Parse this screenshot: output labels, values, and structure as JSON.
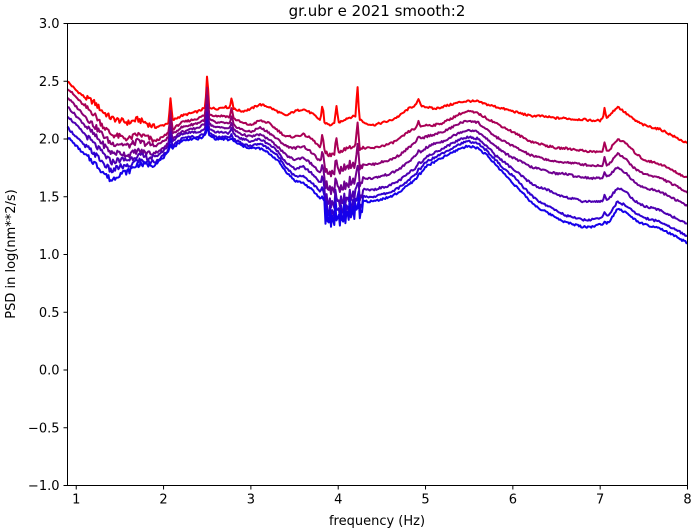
{
  "chart_data": {
    "type": "line",
    "title": "gr.ubr e 2021 smooth:2",
    "xlabel": "frequency (Hz)",
    "ylabel": "PSD in log(nm**2/s)",
    "xlim": [
      0.9,
      8.0
    ],
    "ylim": [
      -1.0,
      3.0
    ],
    "xticks": [
      1,
      2,
      3,
      4,
      5,
      6,
      7,
      8
    ],
    "xtick_labels": [
      "1",
      "2",
      "3",
      "4",
      "5",
      "6",
      "7",
      "8"
    ],
    "yticks": [
      -1.0,
      -0.5,
      0.0,
      0.5,
      1.0,
      1.5,
      2.0,
      2.5,
      3.0
    ],
    "ytick_labels": [
      "−1.0",
      "−0.5",
      "0.0",
      "0.5",
      "1.0",
      "1.5",
      "2.0",
      "2.5",
      "3.0"
    ],
    "grid": false,
    "legend": "none",
    "series_colors": [
      "#ff0000",
      "#aa0055",
      "#8c0073",
      "#6e0091",
      "#4d00b2",
      "#2e00d1",
      "#1500ea"
    ],
    "series": [
      {
        "x": [
          0.9,
          1.0,
          1.1,
          1.2,
          1.3,
          1.4,
          1.5,
          1.6,
          1.7,
          1.8,
          1.9,
          2.0,
          2.1,
          2.2,
          2.3,
          2.4,
          2.5,
          2.6,
          2.7,
          2.8,
          2.9,
          3.0,
          3.1,
          3.2,
          3.3,
          3.4,
          3.5,
          3.6,
          3.7,
          3.8,
          3.9,
          4.0,
          4.1,
          4.2,
          4.3,
          4.4,
          4.5,
          4.6,
          4.7,
          4.8,
          4.9,
          5.0,
          5.1,
          5.2,
          5.3,
          5.4,
          5.5,
          5.6,
          5.7,
          5.8,
          5.9,
          6.0,
          6.1,
          6.2,
          6.3,
          6.4,
          6.5,
          6.6,
          6.7,
          6.8,
          6.9,
          7.0,
          7.1,
          7.2,
          7.3,
          7.4,
          7.5,
          7.6,
          7.7,
          7.8,
          7.9,
          8.0
        ],
        "values": [
          2.5,
          2.42,
          2.36,
          2.32,
          2.24,
          2.18,
          2.16,
          2.14,
          2.17,
          2.14,
          2.1,
          2.12,
          2.16,
          2.2,
          2.22,
          2.24,
          2.28,
          2.26,
          2.28,
          2.26,
          2.24,
          2.26,
          2.3,
          2.28,
          2.24,
          2.2,
          2.24,
          2.26,
          2.22,
          2.16,
          2.12,
          2.14,
          2.18,
          2.2,
          2.14,
          2.12,
          2.14,
          2.16,
          2.2,
          2.26,
          2.3,
          2.28,
          2.26,
          2.28,
          2.3,
          2.32,
          2.33,
          2.32,
          2.3,
          2.28,
          2.26,
          2.24,
          2.22,
          2.2,
          2.2,
          2.19,
          2.18,
          2.18,
          2.17,
          2.17,
          2.16,
          2.16,
          2.2,
          2.28,
          2.22,
          2.16,
          2.12,
          2.1,
          2.08,
          2.04,
          2.0,
          1.96
        ]
      },
      {
        "x": [
          0.9,
          1.0,
          1.1,
          1.2,
          1.3,
          1.4,
          1.5,
          1.6,
          1.7,
          1.8,
          1.9,
          2.0,
          2.1,
          2.2,
          2.3,
          2.4,
          2.5,
          2.6,
          2.7,
          2.8,
          2.9,
          3.0,
          3.1,
          3.2,
          3.3,
          3.4,
          3.5,
          3.6,
          3.7,
          3.8,
          3.9,
          4.0,
          4.1,
          4.2,
          4.3,
          4.4,
          4.5,
          4.6,
          4.7,
          4.8,
          4.9,
          5.0,
          5.1,
          5.2,
          5.3,
          5.4,
          5.5,
          5.6,
          5.7,
          5.8,
          5.9,
          6.0,
          6.1,
          6.2,
          6.3,
          6.4,
          6.5,
          6.6,
          6.7,
          6.8,
          6.9,
          7.0,
          7.1,
          7.2,
          7.3,
          7.4,
          7.5,
          7.6,
          7.7,
          7.8,
          7.9,
          8.0
        ],
        "values": [
          2.44,
          2.36,
          2.28,
          2.22,
          2.12,
          2.04,
          2.02,
          2.0,
          2.04,
          2.02,
          1.98,
          2.02,
          2.08,
          2.14,
          2.16,
          2.18,
          2.22,
          2.2,
          2.2,
          2.18,
          2.14,
          2.12,
          2.16,
          2.14,
          2.08,
          2.02,
          2.02,
          2.04,
          2.0,
          1.92,
          1.88,
          1.9,
          1.94,
          1.96,
          1.92,
          1.92,
          1.94,
          1.96,
          2.0,
          2.06,
          2.1,
          2.12,
          2.12,
          2.14,
          2.18,
          2.22,
          2.24,
          2.22,
          2.18,
          2.14,
          2.1,
          2.06,
          2.02,
          1.98,
          1.96,
          1.94,
          1.92,
          1.92,
          1.91,
          1.9,
          1.89,
          1.89,
          1.9,
          2.0,
          1.96,
          1.88,
          1.82,
          1.8,
          1.78,
          1.74,
          1.7,
          1.66
        ]
      },
      {
        "x": [
          0.9,
          1.0,
          1.1,
          1.2,
          1.3,
          1.4,
          1.5,
          1.6,
          1.7,
          1.8,
          1.9,
          2.0,
          2.1,
          2.2,
          2.3,
          2.4,
          2.5,
          2.6,
          2.7,
          2.8,
          2.9,
          3.0,
          3.1,
          3.2,
          3.3,
          3.4,
          3.5,
          3.6,
          3.7,
          3.8,
          3.9,
          4.0,
          4.1,
          4.2,
          4.3,
          4.4,
          4.5,
          4.6,
          4.7,
          4.8,
          4.9,
          5.0,
          5.1,
          5.2,
          5.3,
          5.4,
          5.5,
          5.6,
          5.7,
          5.8,
          5.9,
          6.0,
          6.1,
          6.2,
          6.3,
          6.4,
          6.5,
          6.6,
          6.7,
          6.8,
          6.9,
          7.0,
          7.1,
          7.2,
          7.3,
          7.4,
          7.5,
          7.6,
          7.7,
          7.8,
          7.9,
          8.0
        ],
        "values": [
          2.36,
          2.28,
          2.2,
          2.12,
          2.04,
          1.96,
          1.96,
          1.94,
          1.98,
          1.96,
          1.94,
          1.98,
          2.04,
          2.1,
          2.12,
          2.14,
          2.18,
          2.14,
          2.14,
          2.12,
          2.08,
          2.06,
          2.1,
          2.06,
          2.0,
          1.94,
          1.92,
          1.94,
          1.88,
          1.8,
          1.74,
          1.76,
          1.8,
          1.82,
          1.78,
          1.78,
          1.8,
          1.82,
          1.86,
          1.92,
          1.98,
          2.02,
          2.04,
          2.06,
          2.1,
          2.14,
          2.16,
          2.14,
          2.08,
          2.02,
          1.98,
          1.94,
          1.9,
          1.86,
          1.84,
          1.82,
          1.8,
          1.8,
          1.79,
          1.78,
          1.77,
          1.77,
          1.78,
          1.88,
          1.82,
          1.74,
          1.7,
          1.68,
          1.66,
          1.62,
          1.58,
          1.54
        ]
      },
      {
        "x": [
          0.9,
          1.0,
          1.1,
          1.2,
          1.3,
          1.4,
          1.5,
          1.6,
          1.7,
          1.8,
          1.9,
          2.0,
          2.1,
          2.2,
          2.3,
          2.4,
          2.5,
          2.6,
          2.7,
          2.8,
          2.9,
          3.0,
          3.1,
          3.2,
          3.3,
          3.4,
          3.5,
          3.6,
          3.7,
          3.8,
          3.9,
          4.0,
          4.1,
          4.2,
          4.3,
          4.4,
          4.5,
          4.6,
          4.7,
          4.8,
          4.9,
          5.0,
          5.1,
          5.2,
          5.3,
          5.4,
          5.5,
          5.6,
          5.7,
          5.8,
          5.9,
          6.0,
          6.1,
          6.2,
          6.3,
          6.4,
          6.5,
          6.6,
          6.7,
          6.8,
          6.9,
          7.0,
          7.1,
          7.2,
          7.3,
          7.4,
          7.5,
          7.6,
          7.7,
          7.8,
          7.9,
          8.0
        ],
        "values": [
          2.28,
          2.2,
          2.12,
          2.04,
          1.96,
          1.88,
          1.88,
          1.86,
          1.9,
          1.88,
          1.88,
          1.92,
          2.0,
          2.06,
          2.08,
          2.1,
          2.14,
          2.1,
          2.1,
          2.08,
          2.04,
          2.02,
          2.04,
          2.0,
          1.94,
          1.86,
          1.82,
          1.84,
          1.78,
          1.7,
          1.62,
          1.62,
          1.66,
          1.7,
          1.66,
          1.66,
          1.68,
          1.7,
          1.74,
          1.8,
          1.86,
          1.92,
          1.96,
          1.98,
          2.02,
          2.06,
          2.08,
          2.06,
          2.0,
          1.94,
          1.88,
          1.84,
          1.8,
          1.76,
          1.74,
          1.72,
          1.7,
          1.7,
          1.68,
          1.67,
          1.66,
          1.66,
          1.68,
          1.76,
          1.7,
          1.62,
          1.58,
          1.56,
          1.54,
          1.5,
          1.46,
          1.42
        ]
      },
      {
        "x": [
          0.9,
          1.0,
          1.1,
          1.2,
          1.3,
          1.4,
          1.5,
          1.6,
          1.7,
          1.8,
          1.9,
          2.0,
          2.1,
          2.2,
          2.3,
          2.4,
          2.5,
          2.6,
          2.7,
          2.8,
          2.9,
          3.0,
          3.1,
          3.2,
          3.3,
          3.4,
          3.5,
          3.6,
          3.7,
          3.8,
          3.9,
          4.0,
          4.1,
          4.2,
          4.3,
          4.4,
          4.5,
          4.6,
          4.7,
          4.8,
          4.9,
          5.0,
          5.1,
          5.2,
          5.3,
          5.4,
          5.5,
          5.6,
          5.7,
          5.8,
          5.9,
          6.0,
          6.1,
          6.2,
          6.3,
          6.4,
          6.5,
          6.6,
          6.7,
          6.8,
          6.9,
          7.0,
          7.1,
          7.2,
          7.3,
          7.4,
          7.5,
          7.6,
          7.7,
          7.8,
          7.9,
          8.0
        ],
        "values": [
          2.2,
          2.12,
          2.04,
          1.96,
          1.88,
          1.8,
          1.82,
          1.82,
          1.86,
          1.84,
          1.84,
          1.9,
          1.98,
          2.04,
          2.06,
          2.06,
          2.1,
          2.06,
          2.06,
          2.04,
          2.0,
          1.98,
          2.0,
          1.96,
          1.9,
          1.8,
          1.74,
          1.76,
          1.7,
          1.62,
          1.52,
          1.52,
          1.56,
          1.6,
          1.56,
          1.56,
          1.58,
          1.6,
          1.64,
          1.7,
          1.76,
          1.84,
          1.88,
          1.92,
          1.96,
          2.0,
          2.02,
          2.0,
          1.94,
          1.86,
          1.8,
          1.74,
          1.68,
          1.62,
          1.58,
          1.56,
          1.52,
          1.5,
          1.48,
          1.46,
          1.46,
          1.46,
          1.48,
          1.58,
          1.54,
          1.46,
          1.42,
          1.4,
          1.38,
          1.34,
          1.3,
          1.26
        ]
      },
      {
        "x": [
          0.9,
          1.0,
          1.1,
          1.2,
          1.3,
          1.4,
          1.5,
          1.6,
          1.7,
          1.8,
          1.9,
          2.0,
          2.1,
          2.2,
          2.3,
          2.4,
          2.5,
          2.6,
          2.7,
          2.8,
          2.9,
          3.0,
          3.1,
          3.2,
          3.3,
          3.4,
          3.5,
          3.6,
          3.7,
          3.8,
          3.9,
          4.0,
          4.1,
          4.2,
          4.3,
          4.4,
          4.5,
          4.6,
          4.7,
          4.8,
          4.9,
          5.0,
          5.1,
          5.2,
          5.3,
          5.4,
          5.5,
          5.6,
          5.7,
          5.8,
          5.9,
          6.0,
          6.1,
          6.2,
          6.3,
          6.4,
          6.5,
          6.6,
          6.7,
          6.8,
          6.9,
          7.0,
          7.1,
          7.2,
          7.3,
          7.4,
          7.5,
          7.6,
          7.7,
          7.8,
          7.9,
          8.0
        ],
        "values": [
          2.1,
          2.02,
          1.94,
          1.88,
          1.8,
          1.72,
          1.76,
          1.76,
          1.82,
          1.8,
          1.8,
          1.86,
          1.94,
          2.0,
          2.02,
          2.02,
          2.06,
          2.02,
          2.02,
          2.0,
          1.96,
          1.94,
          1.96,
          1.92,
          1.86,
          1.76,
          1.68,
          1.68,
          1.62,
          1.54,
          1.46,
          1.46,
          1.5,
          1.54,
          1.5,
          1.5,
          1.52,
          1.54,
          1.58,
          1.64,
          1.7,
          1.8,
          1.84,
          1.88,
          1.92,
          1.96,
          1.98,
          1.96,
          1.9,
          1.82,
          1.74,
          1.68,
          1.6,
          1.52,
          1.46,
          1.42,
          1.38,
          1.34,
          1.32,
          1.3,
          1.3,
          1.32,
          1.34,
          1.46,
          1.42,
          1.36,
          1.32,
          1.3,
          1.28,
          1.24,
          1.2,
          1.16
        ]
      },
      {
        "x": [
          0.9,
          1.0,
          1.1,
          1.2,
          1.3,
          1.4,
          1.5,
          1.6,
          1.7,
          1.8,
          1.9,
          2.0,
          2.1,
          2.2,
          2.3,
          2.4,
          2.5,
          2.6,
          2.7,
          2.8,
          2.9,
          3.0,
          3.1,
          3.2,
          3.3,
          3.4,
          3.5,
          3.6,
          3.7,
          3.8,
          3.9,
          4.0,
          4.1,
          4.2,
          4.3,
          4.4,
          4.5,
          4.6,
          4.7,
          4.8,
          4.9,
          5.0,
          5.1,
          5.2,
          5.3,
          5.4,
          5.5,
          5.6,
          5.7,
          5.8,
          5.9,
          6.0,
          6.1,
          6.2,
          6.3,
          6.4,
          6.5,
          6.6,
          6.7,
          6.8,
          6.9,
          7.0,
          7.1,
          7.2,
          7.3,
          7.4,
          7.5,
          7.6,
          7.7,
          7.8,
          7.9,
          8.0
        ],
        "values": [
          2.02,
          1.94,
          1.86,
          1.8,
          1.72,
          1.64,
          1.7,
          1.72,
          1.78,
          1.78,
          1.78,
          1.84,
          1.92,
          1.98,
          2.0,
          2.0,
          2.04,
          2.0,
          2.0,
          1.98,
          1.94,
          1.92,
          1.92,
          1.88,
          1.82,
          1.72,
          1.64,
          1.62,
          1.56,
          1.48,
          1.42,
          1.42,
          1.46,
          1.5,
          1.46,
          1.46,
          1.48,
          1.5,
          1.54,
          1.6,
          1.66,
          1.76,
          1.8,
          1.84,
          1.88,
          1.92,
          1.94,
          1.92,
          1.86,
          1.78,
          1.7,
          1.62,
          1.54,
          1.46,
          1.4,
          1.36,
          1.32,
          1.28,
          1.26,
          1.24,
          1.24,
          1.26,
          1.28,
          1.4,
          1.36,
          1.3,
          1.26,
          1.24,
          1.22,
          1.18,
          1.14,
          1.1
        ]
      }
    ],
    "spikes": [
      {
        "x": 2.08,
        "base_series": 0,
        "peak": 2.36
      },
      {
        "x": 2.5,
        "base_series": 0,
        "peak": 2.57
      },
      {
        "x": 2.78,
        "base_series": 0,
        "peak": 2.37
      },
      {
        "x": 3.82,
        "base_series": 0,
        "peak": 2.31
      },
      {
        "x": 3.98,
        "base_series": 0,
        "peak": 2.3
      },
      {
        "x": 4.22,
        "base_series": 0,
        "peak": 2.47
      },
      {
        "x": 4.92,
        "base_series": 0,
        "peak": 2.35
      },
      {
        "x": 5.6,
        "base_series": 1,
        "peak": 2.23
      },
      {
        "x": 7.05,
        "base_series": 1,
        "peak": 1.98
      }
    ]
  }
}
